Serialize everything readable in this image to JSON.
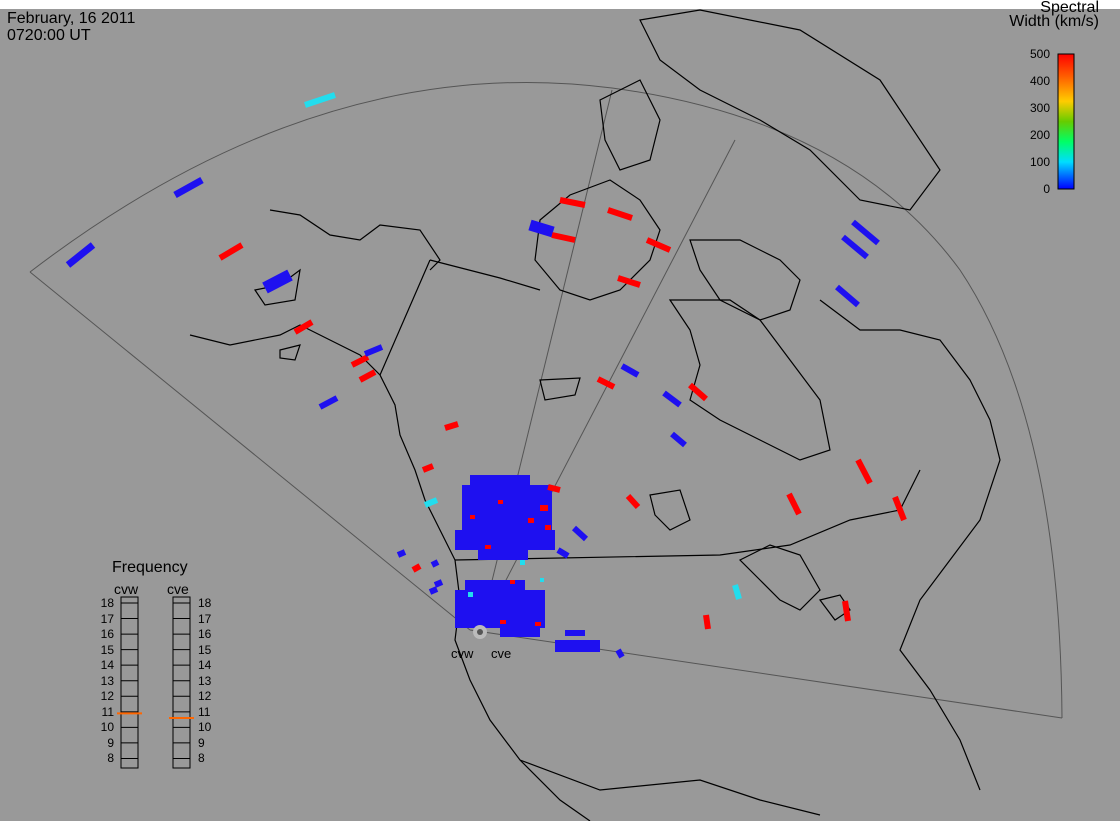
{
  "header": {
    "date": "February, 16 2011",
    "time": "0720:00 UT"
  },
  "colorbar": {
    "title_line1": "Spectral",
    "title_line2": "Width (km/s)",
    "ticks": [
      "500",
      "400",
      "300",
      "200",
      "100",
      "0"
    ],
    "colors": [
      "#ff0000",
      "#ff6600",
      "#ffcc00",
      "#66cc00",
      "#00ff66",
      "#00ddff",
      "#0000ff"
    ]
  },
  "frequency_panel": {
    "title": "Frequency",
    "radar_left": "cvw",
    "radar_right": "cve",
    "ticks": [
      "18",
      "17",
      "16",
      "15",
      "14",
      "13",
      "12",
      "11",
      "10",
      "9",
      "8"
    ],
    "cvw_value": 10.9,
    "cve_value": 10.6,
    "marker_color": "#ff6600"
  },
  "radars": {
    "left_label": "cvw",
    "right_label": "cve"
  },
  "colors": {
    "background": "#999999",
    "high": "#ff0000",
    "low": "#1e10f0",
    "mid": "#22ddee"
  }
}
